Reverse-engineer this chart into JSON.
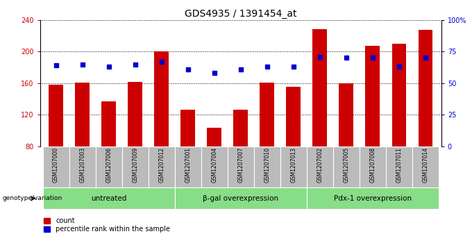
{
  "title": "GDS4935 / 1391454_at",
  "samples": [
    "GSM1207000",
    "GSM1207003",
    "GSM1207006",
    "GSM1207009",
    "GSM1207012",
    "GSM1207001",
    "GSM1207004",
    "GSM1207007",
    "GSM1207010",
    "GSM1207013",
    "GSM1207002",
    "GSM1207005",
    "GSM1207008",
    "GSM1207011",
    "GSM1207014"
  ],
  "counts": [
    158,
    161,
    137,
    162,
    200,
    126,
    103,
    126,
    161,
    155,
    229,
    160,
    207,
    210,
    228
  ],
  "percentiles": [
    64,
    65,
    63,
    65,
    67,
    61,
    58,
    61,
    63,
    63,
    71,
    70,
    70,
    63,
    70
  ],
  "ymin": 80,
  "ymax": 240,
  "yticks": [
    80,
    120,
    160,
    200,
    240
  ],
  "right_yticks": [
    0,
    25,
    50,
    75,
    100
  ],
  "groups": [
    {
      "label": "untreated",
      "start": 0,
      "end": 5
    },
    {
      "label": "β-gal overexpression",
      "start": 5,
      "end": 10
    },
    {
      "label": "Pdx-1 overexpression",
      "start": 10,
      "end": 15
    }
  ],
  "bar_color": "#cc0000",
  "dot_color": "#0000cc",
  "xtick_bg_color": "#bbbbbb",
  "group_bg_color": "#88dd88",
  "bar_width": 0.55,
  "title_fontsize": 10,
  "tick_fontsize": 7,
  "sample_fontsize": 5.5,
  "group_fontsize": 7.5,
  "legend_fontsize": 7,
  "axis_color_red": "#cc0000",
  "axis_color_blue": "#0000cc"
}
